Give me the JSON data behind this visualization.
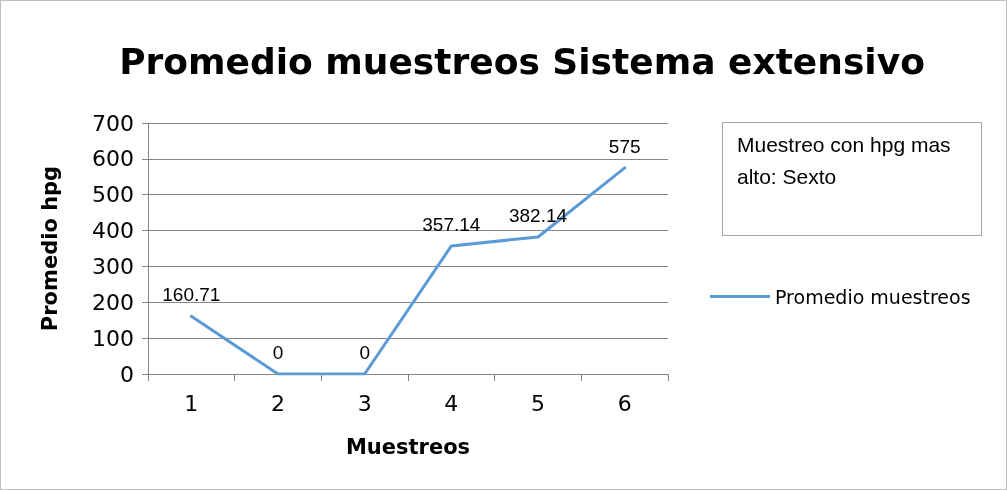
{
  "chart_data": {
    "type": "line",
    "title": "Promedio muestreos Sistema extensivo",
    "xlabel": "Muestreos",
    "ylabel": "Promedio hpg",
    "categories": [
      "1",
      "2",
      "3",
      "4",
      "5",
      "6"
    ],
    "series": [
      {
        "name": "Promedio muestreos",
        "color": "#5b9bd5",
        "values": [
          160.71,
          0,
          0,
          357.14,
          382.14,
          575
        ]
      }
    ],
    "ylim": [
      0,
      700
    ],
    "yticks": [
      0,
      100,
      200,
      300,
      400,
      500,
      600,
      700
    ],
    "grid": "y",
    "legend": "right",
    "marker": "none",
    "line_style": "solid",
    "data_labels": true,
    "annotations": [
      "Muestreo con hpg mas alto: Sexto"
    ]
  }
}
